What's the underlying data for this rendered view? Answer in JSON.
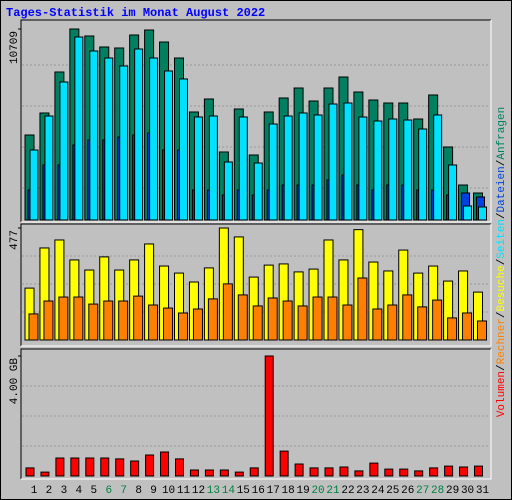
{
  "chart_data": {
    "type": "bar",
    "title": "Tages-Statistik im Monat August 2022",
    "categories": [
      "1",
      "2",
      "3",
      "4",
      "5",
      "6",
      "7",
      "8",
      "9",
      "10",
      "11",
      "12",
      "13",
      "14",
      "15",
      "16",
      "17",
      "18",
      "19",
      "20",
      "21",
      "22",
      "23",
      "24",
      "25",
      "26",
      "27",
      "28",
      "29",
      "30",
      "31"
    ],
    "category_colors": [
      "#000000",
      "#000000",
      "#000000",
      "#000000",
      "#000000",
      "#008040",
      "#008040",
      "#000000",
      "#000000",
      "#000000",
      "#000000",
      "#000000",
      "#008040",
      "#008040",
      "#000000",
      "#000000",
      "#000000",
      "#000000",
      "#000000",
      "#008040",
      "#008040",
      "#000000",
      "#000000",
      "#000000",
      "#000000",
      "#000000",
      "#008040",
      "#008040",
      "#000000",
      "#000000",
      "#000000"
    ],
    "separator": "/",
    "panels": [
      {
        "ylim": [
          0,
          10709
        ],
        "yticks": [
          10709
        ],
        "series": [
          {
            "name": "Anfragen",
            "color": "#008060",
            "values": [
              4766,
              6000,
              8298,
              10709,
              10317,
              9700,
              9644,
              10373,
              10653,
              9980,
              9083,
              6056,
              6784,
              3813,
              6224,
              3645,
              6056,
              6841,
              7401,
              6672,
              7401,
              8018,
              7177,
              6728,
              6560,
              6560,
              5663,
              7009,
              4093,
              1962,
              1514
            ]
          },
          {
            "name": "Dateien",
            "color": "#0040E0",
            "values": [
              1682,
              3084,
              3084,
              4205,
              4486,
              4486,
              4654,
              4766,
              4878,
              3925,
              3925,
              1682,
              1682,
              1402,
              1682,
              1402,
              1682,
              1962,
              1962,
              1962,
              2243,
              2523,
              1962,
              1682,
              1962,
              1962,
              1682,
              1682,
              1402,
              1514,
              1290
            ]
          },
          {
            "name": "Seiten",
            "color": "#00E0FF",
            "values": [
              3925,
              5831,
              7738,
              10261,
              9476,
              9083,
              8635,
              9588,
              9083,
              8355,
              7906,
              5775,
              5831,
              3252,
              5775,
              3196,
              5383,
              5831,
              6000,
              5887,
              6504,
              6560,
              5775,
              5551,
              5663,
              5607,
              5102,
              5887,
              3084,
              785,
              729
            ]
          }
        ]
      },
      {
        "ylim": [
          0,
          477
        ],
        "yticks": [
          477
        ],
        "series": [
          {
            "name": "Besuche",
            "color": "#FFFF00",
            "values": [
              221,
              392,
              426,
              341,
              298,
              354,
              298,
              341,
              409,
              315,
              285,
              247,
              307,
              477,
              439,
              268,
              319,
              324,
              290,
              302,
              426,
              341,
              470,
              332,
              294,
              383,
              285,
              315,
              251,
              294,
              204
            ]
          },
          {
            "name": "Rechner",
            "color": "#FF8000",
            "values": [
              111,
              166,
              183,
              183,
              153,
              166,
              166,
              187,
              149,
              136,
              115,
              132,
              175,
              239,
              192,
              145,
              179,
              166,
              145,
              183,
              183,
              149,
              264,
              132,
              149,
              192,
              141,
              170,
              94,
              115,
              81
            ]
          }
        ]
      },
      {
        "ylim": [
          0,
          4
        ],
        "yticks": [
          {
            "value": 4,
            "label": "4.00 GB"
          }
        ],
        "series": [
          {
            "name": "Volumen",
            "color": "#FF0000",
            "values": [
              0.27,
              0.13,
              0.6,
              0.6,
              0.6,
              0.6,
              0.57,
              0.5,
              0.7,
              0.8,
              0.57,
              0.2,
              0.2,
              0.2,
              0.13,
              0.27,
              4.0,
              0.83,
              0.4,
              0.27,
              0.27,
              0.3,
              0.17,
              0.43,
              0.23,
              0.23,
              0.17,
              0.27,
              0.33,
              0.3,
              0.33
            ]
          }
        ]
      }
    ]
  }
}
